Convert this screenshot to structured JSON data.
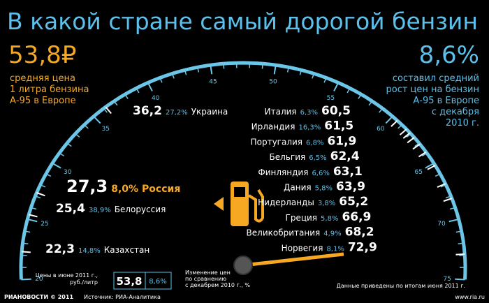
{
  "chart_data": {
    "type": "gauge",
    "title": "В какой стране самый дорогой бензин",
    "left_stat": {
      "value": "53,8₽",
      "lines": [
        "средняя цена",
        "1 литра бензина",
        "А-95 в Европе"
      ]
    },
    "right_stat": {
      "value": "8,6%",
      "lines": [
        "составил средний",
        "рост цен на бензин",
        "А-95 в Европе",
        "с декабря",
        "2010 г."
      ]
    },
    "categories": [
      "Украина",
      "Россия",
      "Белоруссия",
      "Казахстан",
      "Италия",
      "Ирландия",
      "Португалия",
      "Бельгия",
      "Финляндия",
      "Дания",
      "Нидерланды",
      "Греция",
      "Великобритания",
      "Норвегия"
    ],
    "values": [
      36.2,
      27.3,
      25.4,
      22.3,
      60.5,
      61.5,
      61.9,
      62.4,
      63.1,
      63.9,
      65.2,
      66.9,
      68.2,
      72.9
    ],
    "value_labels": [
      "36,2",
      "27,3",
      "25,4",
      "22,3",
      "60,5",
      "61,5",
      "61,9",
      "62,4",
      "63,1",
      "63,9",
      "65,2",
      "66,9",
      "68,2",
      "72,9"
    ],
    "changes": [
      27.2,
      8.0,
      38.9,
      14.8,
      6.3,
      16.3,
      6.8,
      6.5,
      6.6,
      5.8,
      3.8,
      5.8,
      4.9,
      8.1
    ],
    "change_labels": [
      "27,2%",
      "8,0%",
      "38,9%",
      "14,8%",
      "6,3%",
      "16,3%",
      "6,8%",
      "6,5%",
      "6,6%",
      "5,8%",
      "3,8%",
      "5,8%",
      "4,9%",
      "8,1%"
    ],
    "ylim": [
      20,
      75
    ],
    "yticks": [
      20,
      25,
      30,
      35,
      40,
      45,
      50,
      55,
      60,
      65,
      70,
      75
    ],
    "legend": {
      "price_caption": [
        "Цены в июне 2011 г.,",
        "руб./литр"
      ],
      "price": "53,8",
      "change": "8,6%",
      "change_caption": [
        "Изменение цен",
        "по сравнению",
        "с декабрем 2010 г., %"
      ]
    },
    "footer": {
      "brand": "РИАНОВОСТИ © 2011",
      "source": "Источник: РИА-Аналитика",
      "note": "Данные приведены по итогам июня 2011 г.",
      "site": "www.ria.ru"
    }
  }
}
